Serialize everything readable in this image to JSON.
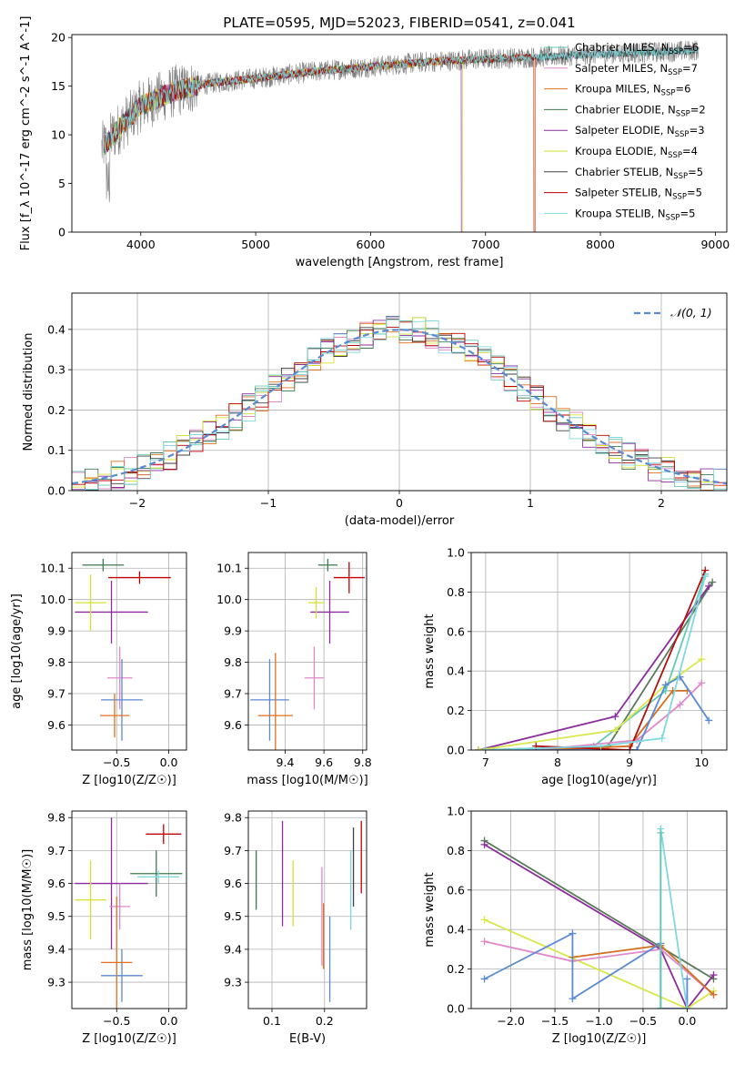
{
  "figure_title": "PLATE=0595, MJD=52023, FIBERID=0541, z=0.041",
  "colors": {
    "Chabrier MILES": "#64c8b4",
    "Salpeter MILES": "#e088c8",
    "Kroupa MILES": "#e07020",
    "Chabrier ELODIE": "#3c7a50",
    "Salpeter ELODIE": "#8c2c9c",
    "Kroupa ELODIE": "#d8e030",
    "Chabrier STELIB": "#404040",
    "Salpeter STELIB": "#c00000",
    "Kroupa STELIB": "#80d8e0",
    "data": "#808080",
    "normal": "#5a8ad6",
    "weights": {
      "Chabrier": "#5a7a5a",
      "Salpeter": "#8c2c9c",
      "Kroupa": "#d8e848",
      "Pink": "#e088c8",
      "Orange": "#d07020",
      "Blue": "#5a8ad6",
      "Red": "#b01010",
      "Cyan": "#80d8e0",
      "Teal": "#64c8b4"
    }
  },
  "chart_data": [
    {
      "id": "spectrum",
      "type": "line",
      "title": "PLATE=0595, MJD=52023, FIBERID=0541, z=0.041",
      "xlabel": "wavelength [Angstrom, rest frame]",
      "ylabel": "Flux [f_λ 10^-17 erg cm^-2 s^-1 A^-1]",
      "xlim": [
        3400,
        9100
      ],
      "ylim": [
        0,
        20.3
      ],
      "xticks": [
        "4000",
        "5000",
        "6000",
        "7000",
        "8000",
        "9000"
      ],
      "yticks": [
        "0",
        "5",
        "10",
        "15",
        "20"
      ],
      "legend": [
        "Chabrier MILES, N_SSP=6",
        "Salpeter MILES, N_SSP=7",
        "Kroupa MILES, N_SSP=6",
        "Chabrier ELODIE, N_SSP=2",
        "Salpeter ELODIE, N_SSP=3",
        "Kroupa ELODIE, N_SSP=4",
        "Chabrier STELIB, N_SSP=5",
        "Salpeter STELIB, N_SSP=5",
        "Kroupa STELIB, N_SSP=5"
      ],
      "continuum": {
        "x": [
          3650,
          3800,
          4000,
          4300,
          4600,
          5000,
          5500,
          6000,
          6500,
          7000,
          7500,
          8000,
          8500,
          8850
        ],
        "y": [
          8.5,
          10.5,
          13.0,
          14.5,
          15.3,
          15.8,
          16.5,
          17.0,
          17.5,
          17.8,
          18.0,
          18.3,
          18.5,
          18.7
        ]
      },
      "legend_placement": "right"
    },
    {
      "id": "residuals",
      "type": "histogram",
      "xlabel": "(data-model)/error",
      "ylabel": "Normed distribution",
      "xlim": [
        -2.5,
        2.5
      ],
      "ylim": [
        0,
        0.49
      ],
      "xticks": [
        "−2",
        "−1",
        "0",
        "1",
        "2"
      ],
      "yticks": [
        "0.0",
        "0.1",
        "0.2",
        "0.3",
        "0.4"
      ],
      "legend": [
        "𝒩(0, 1)"
      ],
      "legend_placement": "top-right",
      "bin_width": 0.1
    },
    {
      "id": "age-vs-Z",
      "type": "scatter",
      "xlabel": "Z [log10(Z/Z☉)]",
      "ylabel": "age  [log10(age/yr)]",
      "xlim": [
        -0.93,
        0.17
      ],
      "ylim": [
        9.52,
        10.15
      ],
      "xticks": [
        "−0.5",
        "0.0"
      ],
      "yticks": [
        "9.6",
        "9.7",
        "9.8",
        "9.9",
        "10.0",
        "10.1"
      ],
      "points": [
        {
          "x": -0.63,
          "y": 10.11,
          "xerr": 0.2,
          "yerr": 0.02,
          "c": "Chabrier ELODIE"
        },
        {
          "x": -0.28,
          "y": 10.07,
          "xerr": 0.3,
          "yerr": 0.02,
          "c": "Salpeter STELIB"
        },
        {
          "x": -0.55,
          "y": 9.96,
          "xerr": 0.35,
          "yerr": 0.1,
          "c": "Salpeter ELODIE"
        },
        {
          "x": -0.75,
          "y": 9.99,
          "xerr": 0.15,
          "yerr": 0.09,
          "c": "Kroupa ELODIE"
        },
        {
          "x": -0.47,
          "y": 9.75,
          "xerr": 0.12,
          "yerr": 0.1,
          "c": "Salpeter MILES"
        },
        {
          "x": -0.45,
          "y": 9.68,
          "xerr": 0.2,
          "yerr": 0.13,
          "c": "Blue"
        },
        {
          "x": -0.52,
          "y": 9.63,
          "xerr": 0.14,
          "yerr": 0.07,
          "c": "Kroupa MILES"
        }
      ]
    },
    {
      "id": "age-vs-mass",
      "type": "scatter",
      "xlabel": "mass [log10(M/M☉)]",
      "ylabel": "",
      "xlim": [
        9.21,
        9.82
      ],
      "ylim": [
        9.52,
        10.15
      ],
      "xticks": [
        "9.4",
        "9.6",
        "9.8"
      ],
      "yticks": [
        "9.6",
        "9.7",
        "9.8",
        "9.9",
        "10.0",
        "10.1"
      ],
      "points": [
        {
          "x": 9.62,
          "y": 10.11,
          "xerr": 0.05,
          "yerr": 0.02,
          "c": "Chabrier ELODIE"
        },
        {
          "x": 9.73,
          "y": 10.07,
          "xerr": 0.08,
          "yerr": 0.05,
          "c": "Salpeter STELIB"
        },
        {
          "x": 9.63,
          "y": 9.96,
          "xerr": 0.1,
          "yerr": 0.1,
          "c": "Salpeter ELODIE"
        },
        {
          "x": 9.56,
          "y": 9.99,
          "xerr": 0.04,
          "yerr": 0.05,
          "c": "Kroupa ELODIE"
        },
        {
          "x": 9.55,
          "y": 9.75,
          "xerr": 0.05,
          "yerr": 0.1,
          "c": "Salpeter MILES"
        },
        {
          "x": 9.32,
          "y": 9.68,
          "xerr": 0.1,
          "yerr": 0.13,
          "c": "Blue"
        },
        {
          "x": 9.35,
          "y": 9.63,
          "xerr": 0.09,
          "yerr": 0.2,
          "c": "Kroupa MILES"
        }
      ]
    },
    {
      "id": "weight-vs-age",
      "type": "line",
      "xlabel": "age  [log10(age/yr)]",
      "ylabel": "mass weight",
      "xlim": [
        6.8,
        10.35
      ],
      "ylim": [
        0,
        1.0
      ],
      "xticks": [
        "7",
        "8",
        "9",
        "10"
      ],
      "yticks": [
        "0.0",
        "0.2",
        "0.4",
        "0.6",
        "0.8",
        "1.0"
      ],
      "series": [
        {
          "c": "Chabrier",
          "x": [
            6.9,
            8.7,
            10.15
          ],
          "y": [
            0.0,
            0.02,
            0.85
          ]
        },
        {
          "c": "Salpeter",
          "x": [
            6.9,
            8.8,
            10.1
          ],
          "y": [
            0.0,
            0.17,
            0.83
          ]
        },
        {
          "c": "Teal",
          "x": [
            7.0,
            8.5,
            9.5,
            10.05
          ],
          "y": [
            0.0,
            0.02,
            0.3,
            0.89
          ]
        },
        {
          "c": "Kroupa",
          "x": [
            6.9,
            8.8,
            9.5,
            10.0
          ],
          "y": [
            0.0,
            0.1,
            0.33,
            0.46
          ]
        },
        {
          "c": "Pink",
          "x": [
            7.7,
            9.1,
            9.7,
            10.0
          ],
          "y": [
            0.0,
            0.05,
            0.23,
            0.34
          ]
        },
        {
          "c": "Orange",
          "x": [
            7.8,
            9.0,
            9.6,
            9.8
          ],
          "y": [
            0.0,
            0.02,
            0.3,
            0.3
          ]
        },
        {
          "c": "Blue",
          "x": [
            7.0,
            9.1,
            9.5,
            9.7,
            10.1
          ],
          "y": [
            0.0,
            0.0,
            0.33,
            0.37,
            0.15
          ]
        },
        {
          "c": "Red",
          "x": [
            7.7,
            9.0,
            10.05
          ],
          "y": [
            0.02,
            0.0,
            0.91
          ]
        },
        {
          "c": "Cyan",
          "x": [
            7.0,
            8.6,
            9.45,
            10.05
          ],
          "y": [
            0.0,
            0.02,
            0.06,
            0.88
          ]
        }
      ]
    },
    {
      "id": "mass-vs-Z",
      "type": "scatter",
      "xlabel": "Z [log10(Z/Z☉)]",
      "ylabel": "mass [log10(M/M☉)]",
      "xlim": [
        -0.93,
        0.17
      ],
      "ylim": [
        9.22,
        9.82
      ],
      "xticks": [
        "−0.5",
        "0.0"
      ],
      "yticks": [
        "9.3",
        "9.4",
        "9.5",
        "9.6",
        "9.7",
        "9.8"
      ],
      "points": [
        {
          "x": -0.12,
          "y": 9.63,
          "xerr": 0.25,
          "yerr": 0.07,
          "c": "Chabrier ELODIE"
        },
        {
          "x": -0.05,
          "y": 9.75,
          "xerr": 0.17,
          "yerr": 0.03,
          "c": "Salpeter STELIB"
        },
        {
          "x": -0.55,
          "y": 9.6,
          "xerr": 0.35,
          "yerr": 0.2,
          "c": "Salpeter ELODIE"
        },
        {
          "x": -0.75,
          "y": 9.55,
          "xerr": 0.15,
          "yerr": 0.12,
          "c": "Kroupa ELODIE"
        },
        {
          "x": -0.47,
          "y": 9.53,
          "xerr": 0.1,
          "yerr": 0.07,
          "c": "Salpeter MILES"
        },
        {
          "x": -0.45,
          "y": 9.32,
          "xerr": 0.2,
          "yerr": 0.08,
          "c": "Blue"
        },
        {
          "x": -0.5,
          "y": 9.36,
          "xerr": 0.15,
          "yerr": 0.2,
          "c": "Kroupa MILES"
        },
        {
          "x": -0.1,
          "y": 9.62,
          "xerr": 0.2,
          "yerr": 0.02,
          "c": "Kroupa STELIB"
        }
      ]
    },
    {
      "id": "mass-vs-EBV",
      "type": "scatter",
      "xlabel": "E(B-V)",
      "ylabel": "",
      "xlim": [
        0.055,
        0.28
      ],
      "ylim": [
        9.22,
        9.82
      ],
      "xticks": [
        "0.1",
        "0.2"
      ],
      "yticks": [
        "9.3",
        "9.4",
        "9.5",
        "9.6",
        "9.7",
        "9.8"
      ],
      "points": [
        {
          "x": 0.07,
          "y": 9.61,
          "yerr": 0.09,
          "c": "Chabrier ELODIE"
        },
        {
          "x": 0.12,
          "y": 9.63,
          "yerr": 0.16,
          "c": "Salpeter ELODIE"
        },
        {
          "x": 0.14,
          "y": 9.57,
          "yerr": 0.1,
          "c": "Kroupa ELODIE"
        },
        {
          "x": 0.195,
          "y": 9.5,
          "yerr": 0.15,
          "c": "Salpeter MILES"
        },
        {
          "x": 0.198,
          "y": 9.44,
          "yerr": 0.1,
          "c": "Kroupa MILES"
        },
        {
          "x": 0.21,
          "y": 9.37,
          "yerr": 0.13,
          "c": "Blue"
        },
        {
          "x": 0.25,
          "y": 9.58,
          "yerr": 0.12,
          "c": "Kroupa STELIB"
        },
        {
          "x": 0.255,
          "y": 9.65,
          "yerr": 0.12,
          "c": "Chabrier STELIB"
        },
        {
          "x": 0.27,
          "y": 9.68,
          "yerr": 0.11,
          "c": "Salpeter STELIB"
        }
      ]
    },
    {
      "id": "weight-vs-Z",
      "type": "line",
      "xlabel": "Z [log10(Z/Z☉)]",
      "ylabel": "mass weight",
      "xlim": [
        -2.45,
        0.45
      ],
      "ylim": [
        0,
        1.0
      ],
      "xticks": [
        "−2.0",
        "−1.5",
        "−1.0",
        "−0.5",
        "0.0"
      ],
      "yticks": [
        "0.0",
        "0.2",
        "0.4",
        "0.6",
        "0.8",
        "1.0"
      ],
      "series": [
        {
          "c": "Chabrier",
          "x": [
            -2.3,
            0.3
          ],
          "y": [
            0.85,
            0.15
          ]
        },
        {
          "c": "Salpeter",
          "x": [
            -2.3,
            -0.3,
            0.0,
            0.3
          ],
          "y": [
            0.83,
            0.3,
            0.0,
            0.17
          ]
        },
        {
          "c": "Kroupa",
          "x": [
            -2.3,
            0.0,
            0.3
          ],
          "y": [
            0.45,
            0.0,
            0.09
          ]
        },
        {
          "c": "Pink",
          "x": [
            -2.3,
            -1.3,
            -0.3,
            0.3
          ],
          "y": [
            0.34,
            0.24,
            0.3,
            0.07
          ]
        },
        {
          "c": "Orange",
          "x": [
            -1.3,
            -0.3,
            0.3
          ],
          "y": [
            0.26,
            0.32,
            0.07
          ]
        },
        {
          "c": "Blue",
          "x": [
            -2.3,
            -1.3,
            -1.3,
            -0.3,
            -0.3,
            0.0,
            0.0
          ],
          "y": [
            0.15,
            0.38,
            0.05,
            0.33,
            0.0,
            0.0,
            0.15
          ]
        },
        {
          "c": "Cyan",
          "x": [
            -0.3,
            -0.3,
            0.0
          ],
          "y": [
            0.0,
            0.91,
            0.0
          ]
        },
        {
          "c": "Teal",
          "x": [
            -0.3,
            -0.3
          ],
          "y": [
            0.0,
            0.89
          ]
        }
      ]
    }
  ]
}
